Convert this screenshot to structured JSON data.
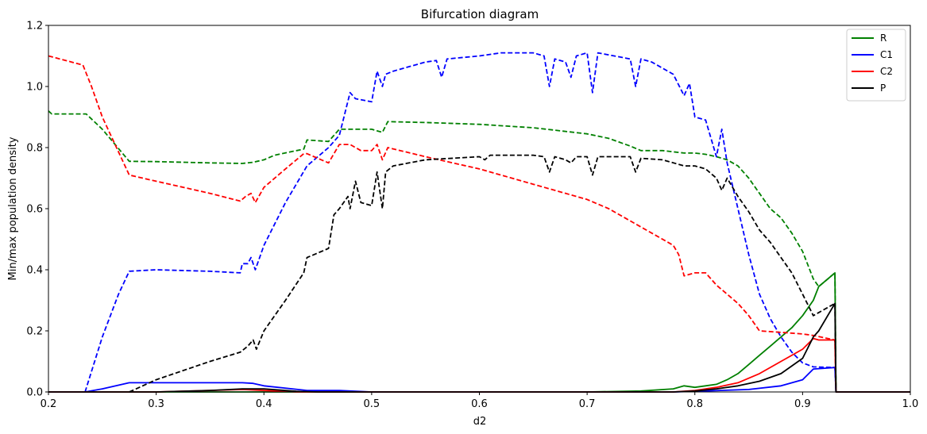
{
  "chart_data": {
    "type": "line",
    "title": "Bifurcation diagram",
    "xlabel": "d2",
    "ylabel": "Min/max population density",
    "xlim": [
      0.2,
      1.0
    ],
    "ylim": [
      0.0,
      1.2
    ],
    "xticks": [
      "0.2",
      "0.3",
      "0.4",
      "0.5",
      "0.6",
      "0.7",
      "0.8",
      "0.9",
      "1.0"
    ],
    "yticks": [
      "0.0",
      "0.2",
      "0.4",
      "0.6",
      "0.8",
      "1.0",
      "1.2"
    ],
    "grid": false,
    "legend_position": "top-right",
    "legend": [
      {
        "name": "R",
        "color": "#008000"
      },
      {
        "name": "C1",
        "color": "#0000ff"
      },
      {
        "name": "C2",
        "color": "#ff0000"
      },
      {
        "name": "P",
        "color": "#000000"
      }
    ],
    "series": [
      {
        "name": "R",
        "color": "#008000",
        "kind": "max",
        "style": "dashed",
        "points": [
          [
            0.2,
            0.92
          ],
          [
            0.203,
            0.91
          ],
          [
            0.235,
            0.91
          ],
          [
            0.25,
            0.86
          ],
          [
            0.275,
            0.755
          ],
          [
            0.3,
            0.754
          ],
          [
            0.35,
            0.75
          ],
          [
            0.38,
            0.748
          ],
          [
            0.39,
            0.752
          ],
          [
            0.4,
            0.76
          ],
          [
            0.41,
            0.775
          ],
          [
            0.437,
            0.795
          ],
          [
            0.44,
            0.825
          ],
          [
            0.46,
            0.82
          ],
          [
            0.47,
            0.86
          ],
          [
            0.48,
            0.86
          ],
          [
            0.5,
            0.86
          ],
          [
            0.51,
            0.85
          ],
          [
            0.515,
            0.885
          ],
          [
            0.55,
            0.882
          ],
          [
            0.6,
            0.876
          ],
          [
            0.65,
            0.865
          ],
          [
            0.7,
            0.845
          ],
          [
            0.72,
            0.83
          ],
          [
            0.74,
            0.805
          ],
          [
            0.75,
            0.79
          ],
          [
            0.77,
            0.79
          ],
          [
            0.79,
            0.782
          ],
          [
            0.8,
            0.782
          ],
          [
            0.81,
            0.778
          ],
          [
            0.82,
            0.77
          ],
          [
            0.83,
            0.76
          ],
          [
            0.84,
            0.74
          ],
          [
            0.85,
            0.7
          ],
          [
            0.86,
            0.65
          ],
          [
            0.87,
            0.6
          ],
          [
            0.88,
            0.57
          ],
          [
            0.89,
            0.52
          ],
          [
            0.9,
            0.46
          ],
          [
            0.91,
            0.37
          ],
          [
            0.915,
            0.345
          ],
          [
            0.93,
            0.39
          ],
          [
            0.931,
            0.0
          ]
        ]
      },
      {
        "name": "R",
        "color": "#008000",
        "kind": "min",
        "style": "solid",
        "points": [
          [
            0.2,
            0.0
          ],
          [
            0.5,
            0.0
          ],
          [
            0.7,
            0.0
          ],
          [
            0.75,
            0.003
          ],
          [
            0.78,
            0.01
          ],
          [
            0.79,
            0.02
          ],
          [
            0.8,
            0.015
          ],
          [
            0.82,
            0.025
          ],
          [
            0.83,
            0.04
          ],
          [
            0.84,
            0.06
          ],
          [
            0.85,
            0.09
          ],
          [
            0.86,
            0.12
          ],
          [
            0.87,
            0.15
          ],
          [
            0.88,
            0.18
          ],
          [
            0.89,
            0.21
          ],
          [
            0.9,
            0.25
          ],
          [
            0.91,
            0.3
          ],
          [
            0.915,
            0.345
          ],
          [
            0.93,
            0.39
          ],
          [
            0.931,
            0.0
          ],
          [
            1.0,
            0.0
          ]
        ]
      },
      {
        "name": "C1",
        "color": "#0000ff",
        "kind": "max",
        "style": "dashed",
        "points": [
          [
            0.234,
            0.0
          ],
          [
            0.25,
            0.18
          ],
          [
            0.265,
            0.32
          ],
          [
            0.275,
            0.395
          ],
          [
            0.3,
            0.4
          ],
          [
            0.35,
            0.395
          ],
          [
            0.378,
            0.39
          ],
          [
            0.38,
            0.42
          ],
          [
            0.385,
            0.42
          ],
          [
            0.388,
            0.44
          ],
          [
            0.392,
            0.4
          ],
          [
            0.4,
            0.48
          ],
          [
            0.42,
            0.62
          ],
          [
            0.44,
            0.74
          ],
          [
            0.46,
            0.8
          ],
          [
            0.47,
            0.84
          ],
          [
            0.48,
            0.98
          ],
          [
            0.485,
            0.96
          ],
          [
            0.5,
            0.95
          ],
          [
            0.505,
            1.05
          ],
          [
            0.51,
            1.0
          ],
          [
            0.513,
            1.04
          ],
          [
            0.52,
            1.05
          ],
          [
            0.55,
            1.08
          ],
          [
            0.56,
            1.085
          ],
          [
            0.565,
            1.03
          ],
          [
            0.57,
            1.09
          ],
          [
            0.6,
            1.1
          ],
          [
            0.62,
            1.11
          ],
          [
            0.65,
            1.11
          ],
          [
            0.66,
            1.1
          ],
          [
            0.665,
            1.0
          ],
          [
            0.67,
            1.09
          ],
          [
            0.68,
            1.08
          ],
          [
            0.685,
            1.03
          ],
          [
            0.69,
            1.1
          ],
          [
            0.7,
            1.11
          ],
          [
            0.705,
            0.98
          ],
          [
            0.71,
            1.11
          ],
          [
            0.74,
            1.09
          ],
          [
            0.745,
            1.0
          ],
          [
            0.75,
            1.09
          ],
          [
            0.76,
            1.08
          ],
          [
            0.78,
            1.04
          ],
          [
            0.79,
            0.97
          ],
          [
            0.795,
            1.01
          ],
          [
            0.8,
            0.9
          ],
          [
            0.81,
            0.89
          ],
          [
            0.82,
            0.77
          ],
          [
            0.825,
            0.86
          ],
          [
            0.83,
            0.75
          ],
          [
            0.84,
            0.6
          ],
          [
            0.85,
            0.45
          ],
          [
            0.86,
            0.32
          ],
          [
            0.87,
            0.24
          ],
          [
            0.88,
            0.18
          ],
          [
            0.89,
            0.13
          ],
          [
            0.9,
            0.095
          ],
          [
            0.91,
            0.082
          ],
          [
            0.93,
            0.08
          ],
          [
            0.931,
            0.0
          ]
        ]
      },
      {
        "name": "C1",
        "color": "#0000ff",
        "kind": "min",
        "style": "solid",
        "points": [
          [
            0.2,
            0.0
          ],
          [
            0.234,
            0.0
          ],
          [
            0.25,
            0.01
          ],
          [
            0.275,
            0.03
          ],
          [
            0.3,
            0.03
          ],
          [
            0.35,
            0.03
          ],
          [
            0.38,
            0.03
          ],
          [
            0.39,
            0.028
          ],
          [
            0.4,
            0.02
          ],
          [
            0.44,
            0.005
          ],
          [
            0.47,
            0.005
          ],
          [
            0.5,
            0.0
          ],
          [
            0.78,
            0.0
          ],
          [
            0.8,
            0.002
          ],
          [
            0.85,
            0.008
          ],
          [
            0.88,
            0.02
          ],
          [
            0.9,
            0.04
          ],
          [
            0.91,
            0.075
          ],
          [
            0.93,
            0.08
          ],
          [
            0.931,
            0.0
          ],
          [
            1.0,
            0.0
          ]
        ]
      },
      {
        "name": "C2",
        "color": "#ff0000",
        "kind": "max",
        "style": "dashed",
        "points": [
          [
            0.2,
            1.1
          ],
          [
            0.232,
            1.07
          ],
          [
            0.24,
            1.0
          ],
          [
            0.25,
            0.9
          ],
          [
            0.275,
            0.71
          ],
          [
            0.3,
            0.69
          ],
          [
            0.35,
            0.65
          ],
          [
            0.378,
            0.625
          ],
          [
            0.383,
            0.64
          ],
          [
            0.388,
            0.65
          ],
          [
            0.392,
            0.62
          ],
          [
            0.4,
            0.67
          ],
          [
            0.42,
            0.73
          ],
          [
            0.437,
            0.78
          ],
          [
            0.44,
            0.78
          ],
          [
            0.46,
            0.75
          ],
          [
            0.47,
            0.81
          ],
          [
            0.48,
            0.81
          ],
          [
            0.49,
            0.79
          ],
          [
            0.5,
            0.79
          ],
          [
            0.505,
            0.81
          ],
          [
            0.51,
            0.76
          ],
          [
            0.515,
            0.8
          ],
          [
            0.55,
            0.77
          ],
          [
            0.6,
            0.73
          ],
          [
            0.65,
            0.68
          ],
          [
            0.7,
            0.63
          ],
          [
            0.72,
            0.6
          ],
          [
            0.74,
            0.56
          ],
          [
            0.76,
            0.52
          ],
          [
            0.78,
            0.48
          ],
          [
            0.785,
            0.45
          ],
          [
            0.79,
            0.38
          ],
          [
            0.8,
            0.39
          ],
          [
            0.81,
            0.39
          ],
          [
            0.82,
            0.35
          ],
          [
            0.83,
            0.32
          ],
          [
            0.84,
            0.29
          ],
          [
            0.85,
            0.25
          ],
          [
            0.86,
            0.2
          ],
          [
            0.88,
            0.195
          ],
          [
            0.9,
            0.19
          ],
          [
            0.91,
            0.185
          ],
          [
            0.93,
            0.17
          ],
          [
            0.931,
            0.0
          ]
        ]
      },
      {
        "name": "C2",
        "color": "#ff0000",
        "kind": "min",
        "style": "solid",
        "points": [
          [
            0.2,
            0.0
          ],
          [
            0.3,
            0.0
          ],
          [
            0.35,
            0.005
          ],
          [
            0.38,
            0.008
          ],
          [
            0.4,
            0.005
          ],
          [
            0.43,
            0.0
          ],
          [
            0.78,
            0.0
          ],
          [
            0.8,
            0.005
          ],
          [
            0.82,
            0.015
          ],
          [
            0.84,
            0.03
          ],
          [
            0.86,
            0.06
          ],
          [
            0.88,
            0.1
          ],
          [
            0.9,
            0.14
          ],
          [
            0.91,
            0.175
          ],
          [
            0.915,
            0.17
          ],
          [
            0.93,
            0.17
          ],
          [
            0.931,
            0.0
          ],
          [
            1.0,
            0.0
          ]
        ]
      },
      {
        "name": "P",
        "color": "#000000",
        "kind": "max",
        "style": "dashed",
        "points": [
          [
            0.275,
            0.0
          ],
          [
            0.3,
            0.04
          ],
          [
            0.35,
            0.1
          ],
          [
            0.378,
            0.13
          ],
          [
            0.385,
            0.15
          ],
          [
            0.39,
            0.17
          ],
          [
            0.393,
            0.14
          ],
          [
            0.4,
            0.2
          ],
          [
            0.42,
            0.3
          ],
          [
            0.437,
            0.39
          ],
          [
            0.44,
            0.44
          ],
          [
            0.46,
            0.47
          ],
          [
            0.465,
            0.58
          ],
          [
            0.47,
            0.6
          ],
          [
            0.478,
            0.64
          ],
          [
            0.48,
            0.6
          ],
          [
            0.485,
            0.69
          ],
          [
            0.49,
            0.62
          ],
          [
            0.5,
            0.61
          ],
          [
            0.505,
            0.72
          ],
          [
            0.51,
            0.6
          ],
          [
            0.513,
            0.72
          ],
          [
            0.52,
            0.74
          ],
          [
            0.55,
            0.76
          ],
          [
            0.6,
            0.77
          ],
          [
            0.605,
            0.76
          ],
          [
            0.61,
            0.775
          ],
          [
            0.65,
            0.775
          ],
          [
            0.66,
            0.77
          ],
          [
            0.665,
            0.72
          ],
          [
            0.67,
            0.77
          ],
          [
            0.68,
            0.76
          ],
          [
            0.685,
            0.75
          ],
          [
            0.69,
            0.77
          ],
          [
            0.7,
            0.77
          ],
          [
            0.705,
            0.71
          ],
          [
            0.71,
            0.77
          ],
          [
            0.74,
            0.77
          ],
          [
            0.745,
            0.72
          ],
          [
            0.75,
            0.765
          ],
          [
            0.77,
            0.76
          ],
          [
            0.79,
            0.74
          ],
          [
            0.8,
            0.74
          ],
          [
            0.81,
            0.73
          ],
          [
            0.82,
            0.7
          ],
          [
            0.825,
            0.66
          ],
          [
            0.83,
            0.7
          ],
          [
            0.84,
            0.64
          ],
          [
            0.85,
            0.59
          ],
          [
            0.86,
            0.53
          ],
          [
            0.87,
            0.49
          ],
          [
            0.88,
            0.44
          ],
          [
            0.89,
            0.39
          ],
          [
            0.9,
            0.32
          ],
          [
            0.91,
            0.25
          ],
          [
            0.93,
            0.29
          ],
          [
            0.931,
            0.0
          ]
        ]
      },
      {
        "name": "P",
        "color": "#000000",
        "kind": "min",
        "style": "solid",
        "points": [
          [
            0.2,
            0.0
          ],
          [
            0.3,
            0.0
          ],
          [
            0.35,
            0.005
          ],
          [
            0.38,
            0.01
          ],
          [
            0.4,
            0.01
          ],
          [
            0.43,
            0.002
          ],
          [
            0.45,
            0.0
          ],
          [
            0.78,
            0.0
          ],
          [
            0.8,
            0.003
          ],
          [
            0.82,
            0.01
          ],
          [
            0.84,
            0.02
          ],
          [
            0.86,
            0.035
          ],
          [
            0.88,
            0.06
          ],
          [
            0.9,
            0.11
          ],
          [
            0.91,
            0.18
          ],
          [
            0.915,
            0.2
          ],
          [
            0.93,
            0.29
          ],
          [
            0.931,
            0.0
          ],
          [
            1.0,
            0.0
          ]
        ]
      }
    ]
  }
}
